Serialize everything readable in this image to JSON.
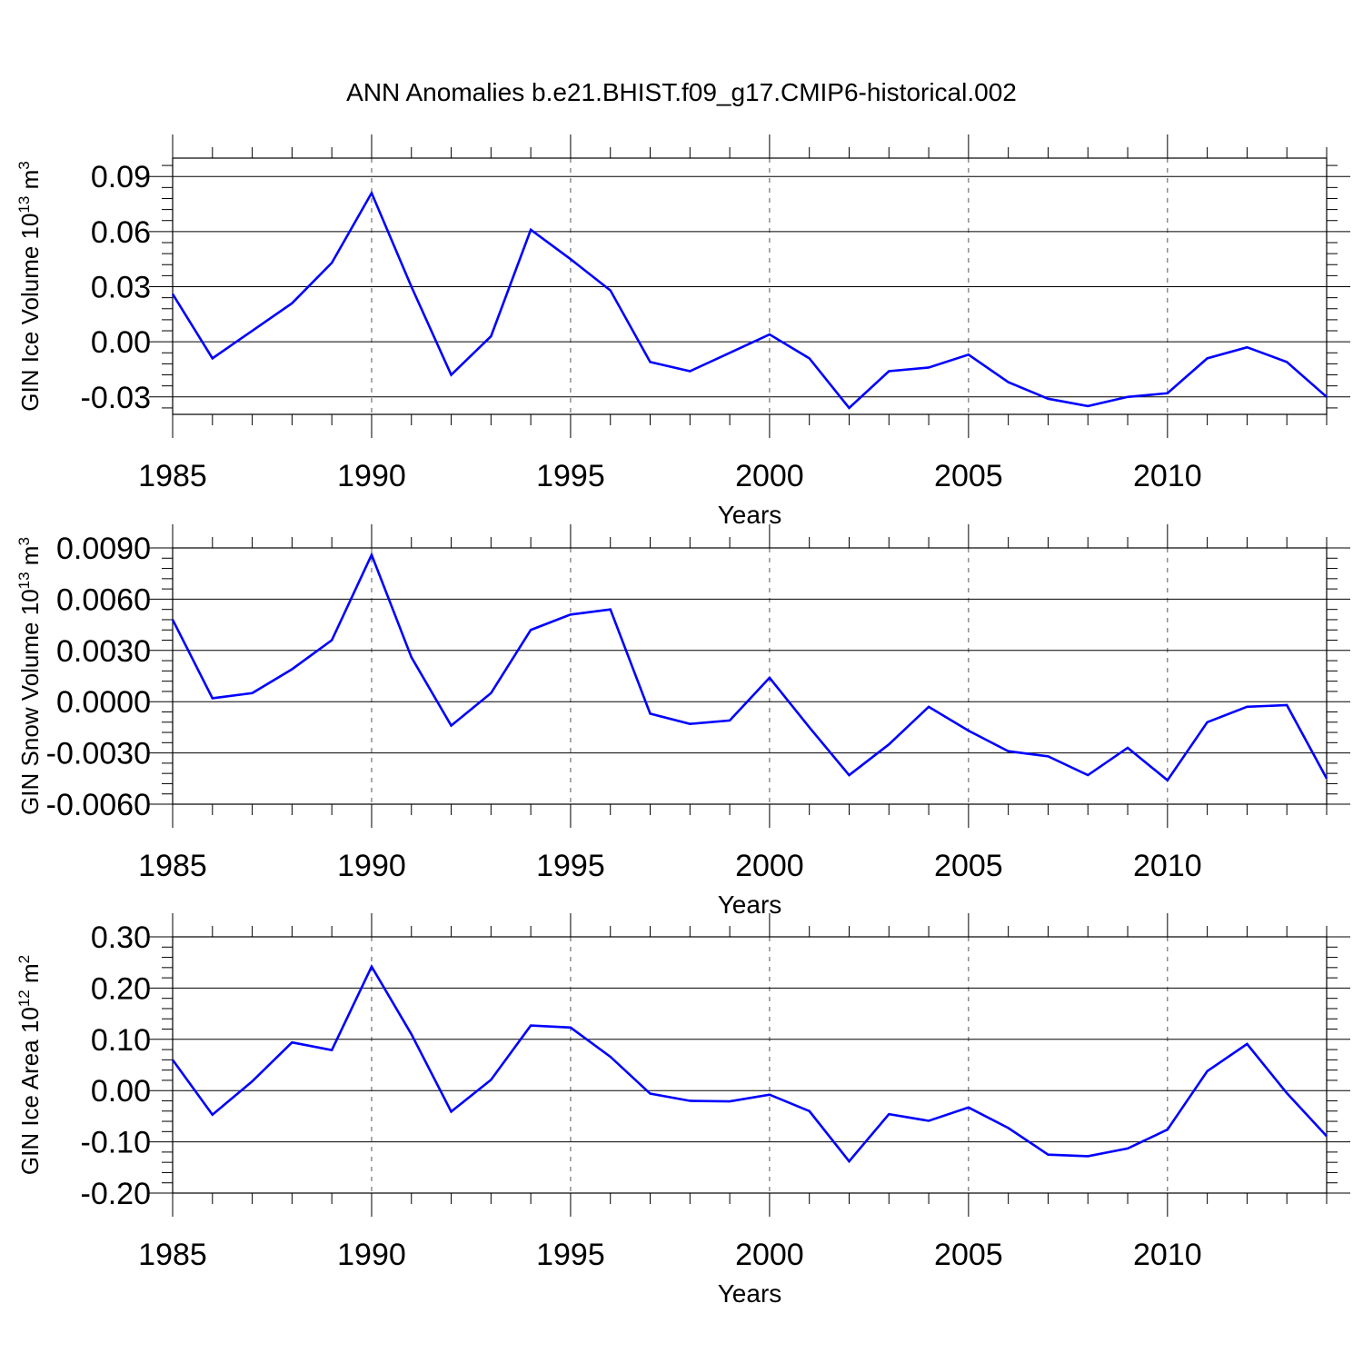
{
  "title": "ANN Anomalies b.e21.BHIST.f09_g17.CMIP6-historical.002",
  "chart_data": [
    {
      "type": "line",
      "ylabel": "GIN Ice Volume 10",
      "ylabel_sup": "13",
      "ylabel_unit": " m",
      "ylabel_unit_sup": "3",
      "xlabel": "Years",
      "xlim": [
        1985,
        2014
      ],
      "ylim": [
        -0.0395,
        0.1
      ],
      "yticks": [
        -0.03,
        0.0,
        0.03,
        0.06,
        0.09
      ],
      "ytick_labels": [
        "-0.03",
        "0.00",
        "0.03",
        "0.06",
        "0.09"
      ],
      "xticks": [
        1985,
        1990,
        1995,
        2000,
        2005,
        2010
      ],
      "xtick_labels": [
        "1985",
        "1990",
        "1995",
        "2000",
        "2005",
        "2010"
      ],
      "line_color": "#0000ff",
      "x": [
        1985,
        1986,
        1987,
        1988,
        1989,
        1990,
        1991,
        1992,
        1993,
        1994,
        1995,
        1996,
        1997,
        1998,
        1999,
        2000,
        2001,
        2002,
        2003,
        2004,
        2005,
        2006,
        2007,
        2008,
        2009,
        2010,
        2011,
        2012,
        2013,
        2014
      ],
      "values": [
        0.026,
        -0.009,
        0.006,
        0.021,
        0.043,
        0.081,
        0.03,
        -0.018,
        0.003,
        0.061,
        0.045,
        0.028,
        -0.011,
        -0.016,
        -0.006,
        0.004,
        -0.009,
        -0.036,
        -0.016,
        -0.014,
        -0.007,
        -0.022,
        -0.031,
        -0.035,
        -0.03,
        -0.028,
        -0.009,
        -0.003,
        -0.011,
        -0.03
      ]
    },
    {
      "type": "line",
      "ylabel": "GIN Snow Volume 10",
      "ylabel_sup": "13",
      "ylabel_unit": " m",
      "ylabel_unit_sup": "3",
      "xlabel": "Years",
      "xlim": [
        1985,
        2014
      ],
      "ylim": [
        -0.006,
        0.009
      ],
      "yticks": [
        -0.006,
        -0.003,
        0.0,
        0.003,
        0.006,
        0.009
      ],
      "ytick_labels": [
        "-0.0060",
        "-0.0030",
        "0.0000",
        "0.0030",
        "0.0060",
        "0.0090"
      ],
      "xticks": [
        1985,
        1990,
        1995,
        2000,
        2005,
        2010
      ],
      "xtick_labels": [
        "1985",
        "1990",
        "1995",
        "2000",
        "2005",
        "2010"
      ],
      "line_color": "#0000ff",
      "x": [
        1985,
        1986,
        1987,
        1988,
        1989,
        1990,
        1991,
        1992,
        1993,
        1994,
        1995,
        1996,
        1997,
        1998,
        1999,
        2000,
        2001,
        2002,
        2003,
        2004,
        2005,
        2006,
        2007,
        2008,
        2009,
        2010,
        2011,
        2012,
        2013,
        2014
      ],
      "values": [
        0.0048,
        0.0002,
        0.0005,
        0.0019,
        0.0036,
        0.0086,
        0.0026,
        -0.0014,
        0.0005,
        0.0042,
        0.0051,
        0.0054,
        -0.0007,
        -0.0013,
        -0.0011,
        0.0014,
        -0.0015,
        -0.0043,
        -0.0025,
        -0.0003,
        -0.0017,
        -0.0029,
        -0.0032,
        -0.0043,
        -0.0027,
        -0.0046,
        -0.0012,
        -0.0003,
        -0.0002,
        -0.0045
      ]
    },
    {
      "type": "line",
      "ylabel": "GIN Ice Area 10",
      "ylabel_sup": "12",
      "ylabel_unit": " m",
      "ylabel_unit_sup": "2",
      "xlabel": "Years",
      "xlim": [
        1985,
        2014
      ],
      "ylim": [
        -0.2,
        0.3
      ],
      "yticks": [
        -0.2,
        -0.1,
        0.0,
        0.1,
        0.2,
        0.3
      ],
      "ytick_labels": [
        "-0.20",
        "-0.10",
        "0.00",
        "0.10",
        "0.20",
        "0.30"
      ],
      "xticks": [
        1985,
        1990,
        1995,
        2000,
        2005,
        2010
      ],
      "xtick_labels": [
        "1985",
        "1990",
        "1995",
        "2000",
        "2005",
        "2010"
      ],
      "line_color": "#0000ff",
      "x": [
        1985,
        1986,
        1987,
        1988,
        1989,
        1990,
        1991,
        1992,
        1993,
        1994,
        1995,
        1996,
        1997,
        1998,
        1999,
        2000,
        2001,
        2002,
        2003,
        2004,
        2005,
        2006,
        2007,
        2008,
        2009,
        2010,
        2011,
        2012,
        2013,
        2014
      ],
      "values": [
        0.06,
        -0.047,
        0.018,
        0.094,
        0.079,
        0.242,
        0.11,
        -0.041,
        0.021,
        0.127,
        0.123,
        0.066,
        -0.006,
        -0.02,
        -0.021,
        -0.008,
        -0.04,
        -0.138,
        -0.046,
        -0.059,
        -0.033,
        -0.073,
        -0.125,
        -0.128,
        -0.113,
        -0.076,
        0.038,
        0.091,
        -0.005,
        -0.089
      ]
    }
  ]
}
